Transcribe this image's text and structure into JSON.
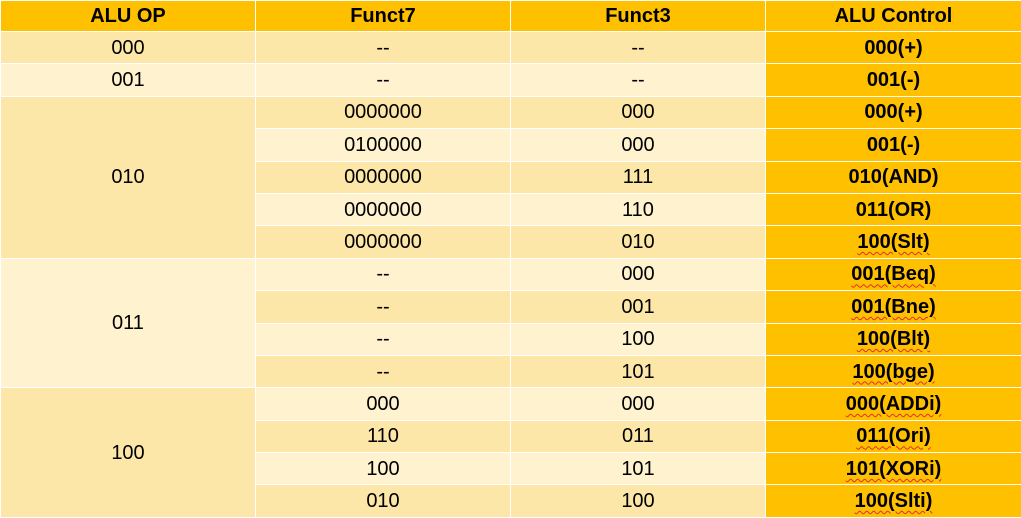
{
  "headers": [
    "ALU OP",
    "Funct7",
    "Funct3",
    "ALU Control"
  ],
  "groups": [
    {
      "alu_op": "000",
      "rows": [
        {
          "funct7": "--",
          "funct3": "--",
          "ctrl": "000(+)"
        }
      ]
    },
    {
      "alu_op": "001",
      "rows": [
        {
          "funct7": "--",
          "funct3": "--",
          "ctrl": "001(-)"
        }
      ]
    },
    {
      "alu_op": "010",
      "rows": [
        {
          "funct7": "0000000",
          "funct3": "000",
          "ctrl": "000(+)"
        },
        {
          "funct7": "0100000",
          "funct3": "000",
          "ctrl": "001(-)"
        },
        {
          "funct7": "0000000",
          "funct3": "111",
          "ctrl": "010(AND)"
        },
        {
          "funct7": "0000000",
          "funct3": "110",
          "ctrl": "011(OR)"
        },
        {
          "funct7": "0000000",
          "funct3": "010",
          "ctrl": "100(Slt)",
          "squiggle": true
        }
      ]
    },
    {
      "alu_op": "011",
      "rows": [
        {
          "funct7": "--",
          "funct3": "000",
          "ctrl": "001(Beq)",
          "squiggle": true
        },
        {
          "funct7": "--",
          "funct3": "001",
          "ctrl": "001(Bne)",
          "squiggle": true
        },
        {
          "funct7": "--",
          "funct3": "100",
          "ctrl": "100(Blt)",
          "squiggle": true
        },
        {
          "funct7": "--",
          "funct3": "101",
          "ctrl": "100(bge)",
          "squiggle": true
        }
      ]
    },
    {
      "alu_op": "100",
      "rows": [
        {
          "funct7": "000",
          "funct3": "000",
          "ctrl": "000(ADDi)",
          "squiggle": true
        },
        {
          "funct7": "110",
          "funct3": "011",
          "ctrl": "011(Ori)",
          "squiggle": true
        },
        {
          "funct7": "100",
          "funct3": "101",
          "ctrl": "101(XORi)",
          "squiggle": true
        },
        {
          "funct7": "010",
          "funct3": "100",
          "ctrl": "100(Slti)",
          "squiggle": true
        }
      ]
    }
  ]
}
